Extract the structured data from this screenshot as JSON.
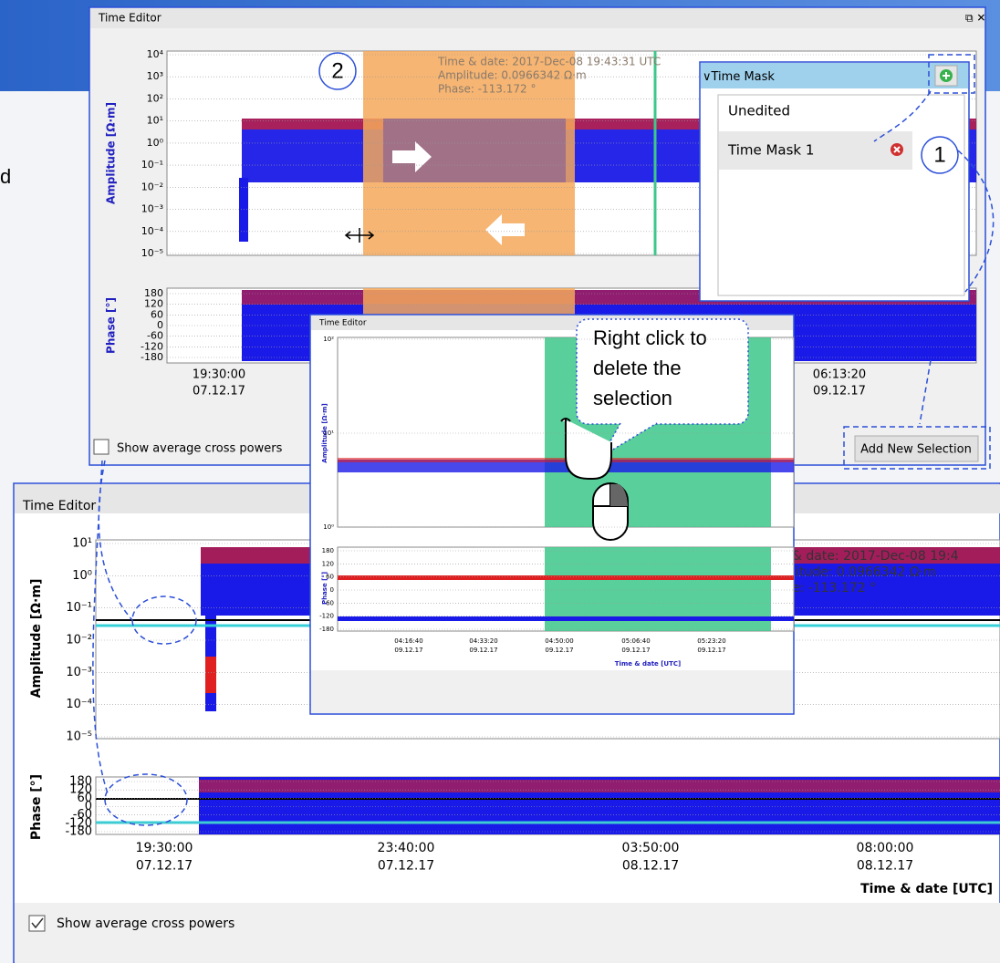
{
  "edge_text": "d",
  "top_window": {
    "title": "Time Editor",
    "amplitude_axis_label": "Amplitude [Ω·m]",
    "phase_axis_label": "Phase [°]",
    "amplitude_ticks": [
      "10⁴",
      "10³",
      "10²",
      "10¹",
      "10⁰",
      "10⁻¹",
      "10⁻²",
      "10⁻³",
      "10⁻⁴",
      "10⁻⁵"
    ],
    "phase_ticks": [
      "180",
      "120",
      "60",
      "0",
      "-60",
      "-120",
      "-180"
    ],
    "x_ticks": [
      {
        "time": "19:30:00",
        "date": "07.12.17"
      },
      {
        "time": "06:13:20",
        "date": "09.12.17"
      }
    ],
    "cursor_info": [
      "Time & date: 2017-Dec-08 19:43:31 UTC",
      "Amplitude: 0.0966342 Ω·m",
      "Phase: -113.172 °"
    ],
    "step_badge": "2",
    "checkbox_label": "Show average cross powers",
    "button": "Add New Selection"
  },
  "time_mask_panel": {
    "header": "Time Mask",
    "items": [
      "Unedited",
      "Time Mask 1"
    ],
    "step_badge": "1"
  },
  "zoom_window": {
    "title": "Time Editor",
    "amplitude_axis_label": "Amplitude [Ω·m]",
    "phase_axis_label": "Phase [°]",
    "amplitude_ticks": [
      "10²",
      "10¹",
      "10⁰"
    ],
    "phase_ticks": [
      "180",
      "120",
      "60",
      "0",
      "-60",
      "-120",
      "-180"
    ],
    "x_ticks": [
      {
        "time": "04:16:40",
        "date": "09.12.17"
      },
      {
        "time": "04:33:20",
        "date": "09.12.17"
      },
      {
        "time": "04:50:00",
        "date": "09.12.17"
      },
      {
        "time": "05:06:40",
        "date": "09.12.17"
      },
      {
        "time": "05:23:20",
        "date": "09.12.17"
      }
    ],
    "x_axis_label": "Time & date [UTC]",
    "callout": [
      "Right click to",
      "delete the",
      "selection"
    ]
  },
  "bottom_window": {
    "title": "Time Editor",
    "amplitude_axis_label": "Amplitude [Ω·m]",
    "phase_axis_label": "Phase [°]",
    "amplitude_ticks": [
      "10¹",
      "10⁰",
      "10⁻¹",
      "10⁻²",
      "10⁻³",
      "10⁻⁴",
      "10⁻⁵"
    ],
    "phase_ticks": [
      "180",
      "120",
      "60",
      "0",
      "-60",
      "-120",
      "-180"
    ],
    "x_ticks": [
      {
        "time": "19:30:00",
        "date": "07.12.17"
      },
      {
        "time": "23:40:00",
        "date": "07.12.17"
      },
      {
        "time": "03:50:00",
        "date": "08.12.17"
      },
      {
        "time": "08:00:00",
        "date": "08.12.17"
      }
    ],
    "x_axis_label": "Time & date [UTC]",
    "cursor_info": [
      "& date: 2017-Dec-08 19:4",
      "litude: 0.0966342 Ω·m",
      "e: -113.172 °"
    ],
    "checkbox_label": "Show average cross powers"
  }
}
